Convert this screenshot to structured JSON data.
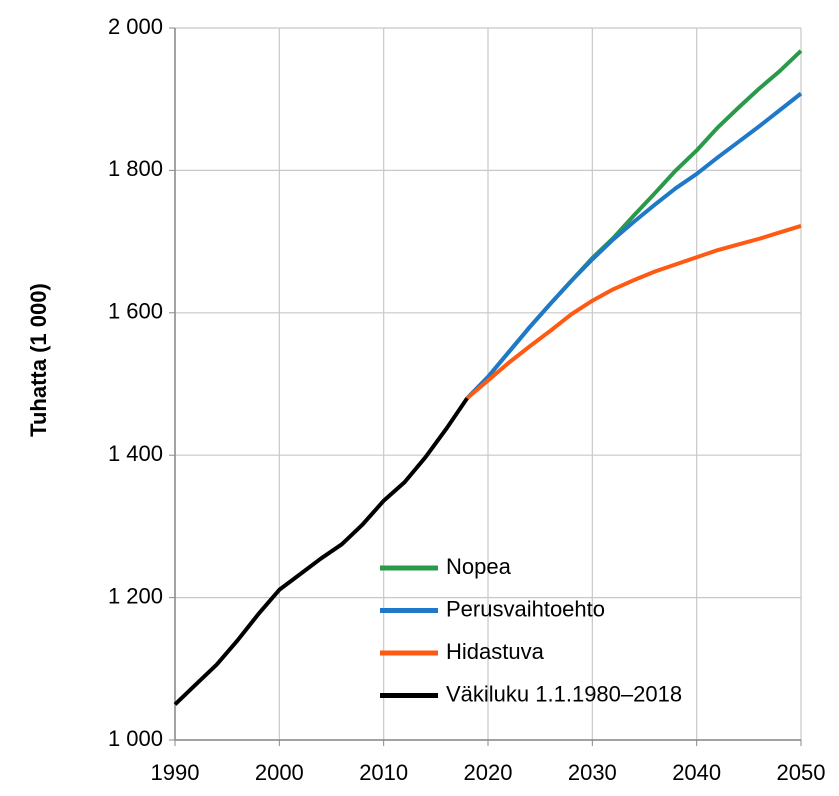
{
  "chart_data": {
    "type": "line",
    "ylabel": "Tuhatta (1 000)",
    "x": [
      1990,
      1992,
      1994,
      1996,
      1998,
      2000,
      2002,
      2004,
      2006,
      2008,
      2010,
      2012,
      2014,
      2016,
      2018,
      2020,
      2022,
      2024,
      2026,
      2028,
      2030,
      2032,
      2034,
      2036,
      2038,
      2040,
      2042,
      2044,
      2046,
      2048,
      2050
    ],
    "series": [
      {
        "name": "Nopea",
        "color": "#2a9a4a",
        "values": [
          null,
          null,
          null,
          null,
          null,
          null,
          null,
          null,
          null,
          null,
          null,
          null,
          null,
          null,
          1480,
          1510,
          1545,
          1580,
          1613,
          1645,
          1677,
          1705,
          1737,
          1768,
          1800,
          1828,
          1860,
          1888,
          1915,
          1940,
          1968
        ]
      },
      {
        "name": "Perusvaihtoehto",
        "color": "#1f78c8",
        "values": [
          null,
          null,
          null,
          null,
          null,
          null,
          null,
          null,
          null,
          null,
          null,
          null,
          null,
          null,
          1480,
          1510,
          1545,
          1580,
          1613,
          1645,
          1675,
          1703,
          1728,
          1752,
          1775,
          1795,
          1818,
          1840,
          1862,
          1885,
          1908
        ]
      },
      {
        "name": "Hidastuva",
        "color": "#ff5a14",
        "values": [
          null,
          null,
          null,
          null,
          null,
          null,
          null,
          null,
          null,
          null,
          null,
          null,
          null,
          null,
          1480,
          1505,
          1530,
          1553,
          1575,
          1598,
          1617,
          1633,
          1646,
          1658,
          1668,
          1678,
          1688,
          1696,
          1704,
          1713,
          1722
        ]
      },
      {
        "name": "Väkiluku 1.1.1980–2018",
        "color": "#000000",
        "values": [
          1050,
          1078,
          1106,
          1140,
          1177,
          1211,
          1233,
          1255,
          1275,
          1303,
          1336,
          1362,
          1397,
          1437,
          1480,
          null,
          null,
          null,
          null,
          null,
          null,
          null,
          null,
          null,
          null,
          null,
          null,
          null,
          null,
          null,
          null
        ]
      }
    ],
    "xlim": [
      1990,
      2050
    ],
    "xticks": [
      1990,
      2000,
      2010,
      2020,
      2030,
      2040,
      2050
    ],
    "ylim": [
      1000,
      2000
    ],
    "yticks": [
      {
        "value": 1000,
        "label": "1 000"
      },
      {
        "value": 1200,
        "label": "1 200"
      },
      {
        "value": 1400,
        "label": "1 400"
      },
      {
        "value": 1600,
        "label": "1 600"
      },
      {
        "value": 1800,
        "label": "1 800"
      },
      {
        "value": 2000,
        "label": "2 000"
      }
    ],
    "grid": true,
    "legend": "lower right"
  }
}
